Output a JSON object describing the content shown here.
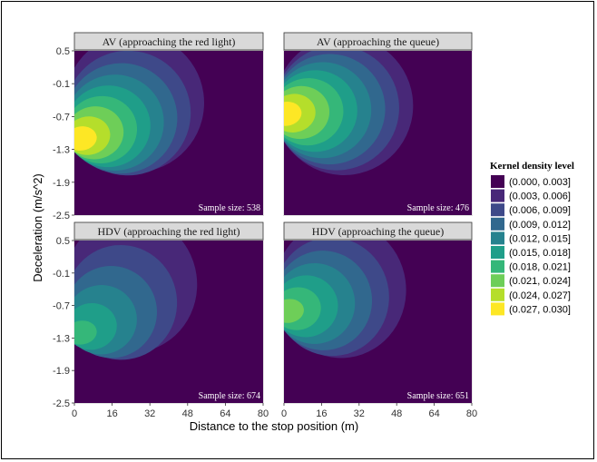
{
  "chart_data": {
    "type": "heatmap",
    "xlabel": "Distance to the stop position (m)",
    "ylabel": "Deceleration (m/s^2)",
    "xlim": [
      0,
      80
    ],
    "ylim": [
      -2.5,
      0.5
    ],
    "x_ticks": [
      "0",
      "16",
      "32",
      "48",
      "64",
      "80"
    ],
    "y_ticks": [
      "0.5",
      "-0.1",
      "-0.7",
      "-1.3",
      "-1.9",
      "-2.5"
    ],
    "grid": true,
    "legend": {
      "title": "Kernel density level",
      "position": "right",
      "levels": [
        {
          "label": "(0.000, 0.003]",
          "color": "#440154"
        },
        {
          "label": "(0.003, 0.006]",
          "color": "#482878"
        },
        {
          "label": "(0.006, 0.009]",
          "color": "#3e4989"
        },
        {
          "label": "(0.009, 0.012]",
          "color": "#31688e"
        },
        {
          "label": "(0.012, 0.015]",
          "color": "#26828e"
        },
        {
          "label": "(0.015, 0.018]",
          "color": "#1f9e89"
        },
        {
          "label": "(0.018, 0.021]",
          "color": "#35b779"
        },
        {
          "label": "(0.021, 0.024]",
          "color": "#6ece58"
        },
        {
          "label": "(0.024, 0.027]",
          "color": "#b5de2b"
        },
        {
          "label": "(0.027, 0.030]",
          "color": "#fde725"
        }
      ]
    },
    "panels": [
      {
        "title": "AV (approaching the red light)",
        "sample_size": "Sample size: 538",
        "peak_level": 9,
        "core": {
          "x": 5,
          "y": -1.1
        },
        "tail": {
          "x": 35,
          "y": -0.45
        }
      },
      {
        "title": "AV (approaching the queue)",
        "sample_size": "Sample size: 476",
        "peak_level": 9,
        "core": {
          "x": 3,
          "y": -0.65
        },
        "tail": {
          "x": 35,
          "y": -0.5
        }
      },
      {
        "title": "HDV (approaching the red light)",
        "sample_size": "Sample size: 674",
        "peak_level": 6,
        "core": {
          "x": 5,
          "y": -1.2
        },
        "tail": {
          "x": 32,
          "y": -0.3
        }
      },
      {
        "title": "HDV (approaching the queue)",
        "sample_size": "Sample size: 651",
        "peak_level": 7,
        "core": {
          "x": 4,
          "y": -0.8
        },
        "tail": {
          "x": 32,
          "y": -0.4
        }
      }
    ]
  }
}
